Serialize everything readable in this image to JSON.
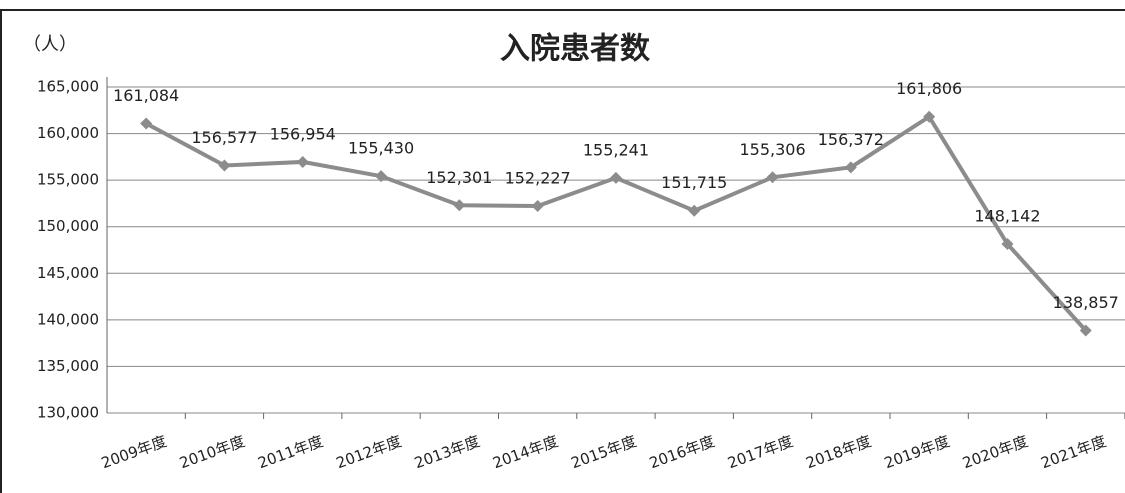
{
  "chart_data": {
    "type": "line",
    "title": "入院患者数",
    "y_axis_label": "（人）",
    "categories": [
      "2009年度",
      "2010年度",
      "2011年度",
      "2012年度",
      "2013年度",
      "2014年度",
      "2015年度",
      "2016年度",
      "2017年度",
      "2018年度",
      "2019年度",
      "2020年度",
      "2021年度"
    ],
    "series": [
      {
        "name": "入院患者数",
        "color": "#8c8c8c",
        "values": [
          161084,
          156577,
          156954,
          155430,
          152301,
          152227,
          155241,
          151715,
          155306,
          156372,
          161806,
          148142,
          138857
        ],
        "value_labels": [
          "161,084",
          "156,577",
          "156,954",
          "155,430",
          "152,301",
          "152,227",
          "155,241",
          "151,715",
          "155,306",
          "156,372",
          "161,806",
          "148,142",
          "138,857"
        ]
      }
    ],
    "ylim": [
      130000,
      165000
    ],
    "yticks": [
      {
        "value": 130000,
        "label": "130,000"
      },
      {
        "value": 135000,
        "label": "135,000"
      },
      {
        "value": 140000,
        "label": "140,000"
      },
      {
        "value": 145000,
        "label": "145,000"
      },
      {
        "value": 150000,
        "label": "150,000"
      },
      {
        "value": 155000,
        "label": "155,000"
      },
      {
        "value": 160000,
        "label": "160,000"
      },
      {
        "value": 165000,
        "label": "165,000"
      }
    ],
    "grid": true
  }
}
